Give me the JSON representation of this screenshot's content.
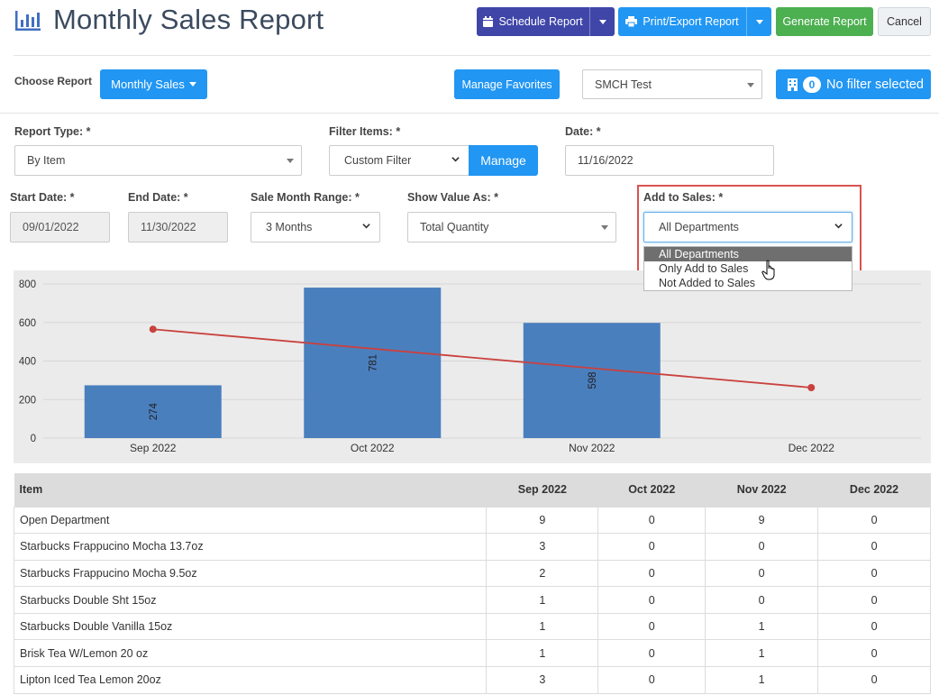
{
  "header": {
    "title": "Monthly Sales Report",
    "schedule_label": "Schedule Report",
    "print_label": "Print/Export Report",
    "generate_label": "Generate Report",
    "cancel_label": "Cancel"
  },
  "toolbar": {
    "choose_report_label": "Choose Report",
    "report_selected": "Monthly Sales",
    "manage_favorites_label": "Manage Favorites",
    "store_value": "SMCH Test",
    "filter_count": "0",
    "filter_label": "No filter selected"
  },
  "form": {
    "report_type_label": "Report Type: *",
    "report_type_value": "By Item",
    "filter_items_label": "Filter Items: *",
    "filter_items_value": "Custom Filter",
    "manage_label": "Manage",
    "date_label": "Date: *",
    "date_value": "11/16/2022",
    "start_date_label": "Start Date: *",
    "start_date_value": "09/01/2022",
    "end_date_label": "End Date: *",
    "end_date_value": "11/30/2022",
    "month_range_label": "Sale Month Range: *",
    "month_range_value": "3 Months",
    "show_value_label": "Show Value As: *",
    "show_value_value": "Total Quantity",
    "add_to_sales_label": "Add to Sales: *",
    "add_to_sales_value": "All Departments",
    "add_to_sales_options": [
      "All Departments",
      "Only Add to Sales",
      "Not Added to Sales"
    ]
  },
  "chart_data": {
    "type": "bar",
    "categories": [
      "Sep 2022",
      "Oct 2022",
      "Nov 2022",
      "Dec 2022"
    ],
    "series": [
      {
        "type": "bar",
        "values": [
          274,
          781,
          598,
          null
        ],
        "data_labels": [
          "274",
          "781",
          "598",
          ""
        ]
      },
      {
        "type": "line",
        "values": [
          565,
          null,
          null,
          262
        ]
      }
    ],
    "yticks": [
      "800",
      "600",
      "400",
      "200",
      "0"
    ],
    "ylim": [
      0,
      800
    ],
    "grid": true,
    "bar_color": "#4a7fbe",
    "line_color": "#c9413e"
  },
  "table": {
    "headers": [
      "Item",
      "Sep 2022",
      "Oct 2022",
      "Nov 2022",
      "Dec 2022"
    ],
    "rows": [
      [
        "Open Department",
        "9",
        "0",
        "9",
        "0"
      ],
      [
        "Starbucks Frappucino Mocha 13.7oz",
        "3",
        "0",
        "0",
        "0"
      ],
      [
        "Starbucks Frappucino Mocha 9.5oz",
        "2",
        "0",
        "0",
        "0"
      ],
      [
        "Starbucks Double Sht 15oz",
        "1",
        "0",
        "0",
        "0"
      ],
      [
        "Starbucks Double Vanilla 15oz",
        "1",
        "0",
        "1",
        "0"
      ],
      [
        "Brisk Tea W/Lemon 20 oz",
        "1",
        "0",
        "1",
        "0"
      ],
      [
        "Lipton Iced Tea Lemon 20oz",
        "3",
        "0",
        "1",
        "0"
      ]
    ]
  },
  "colors": {
    "primary": "#2196f3",
    "indigo": "#3f46a8",
    "green": "#4caf50",
    "highlight_border": "#d9534f"
  }
}
